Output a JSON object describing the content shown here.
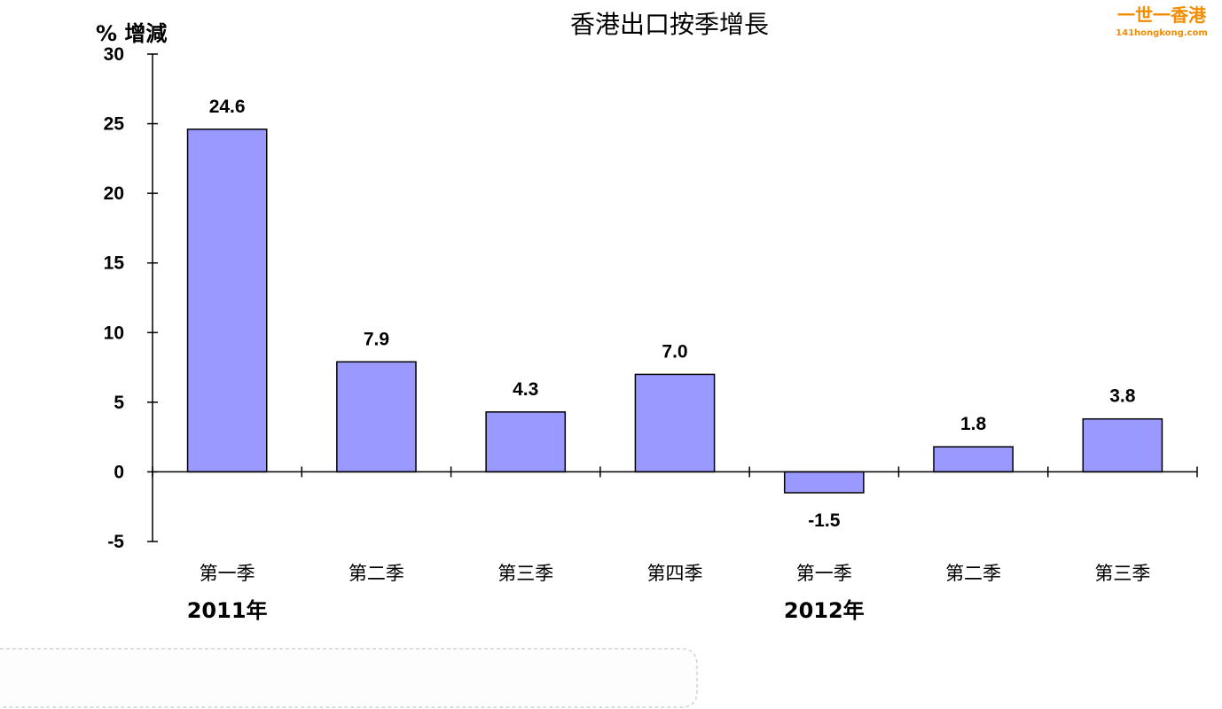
{
  "logo": {
    "name": "一世一香港",
    "url": "141hongkong.com"
  },
  "chart_data": {
    "type": "bar",
    "title": "香港出口按季增長",
    "ylabel": "% 增減",
    "xlabel": "",
    "ylim": [
      -5,
      30
    ],
    "yticks": [
      30,
      25,
      20,
      15,
      10,
      5,
      0,
      -5
    ],
    "categories": [
      "第一季",
      "第二季",
      "第三季",
      "第四季",
      "第一季",
      "第二季",
      "第三季"
    ],
    "values": [
      24.6,
      7.9,
      4.3,
      7.0,
      -1.5,
      1.8,
      3.8
    ],
    "value_labels": [
      "24.6",
      "7.9",
      "4.3",
      "7.0",
      "-1.5",
      "1.8",
      "3.8"
    ],
    "groups": [
      {
        "label": "2011年",
        "start_index": 0
      },
      {
        "label": "2012年",
        "start_index": 4
      }
    ],
    "bar_color": "#9999ff",
    "grid": false
  }
}
